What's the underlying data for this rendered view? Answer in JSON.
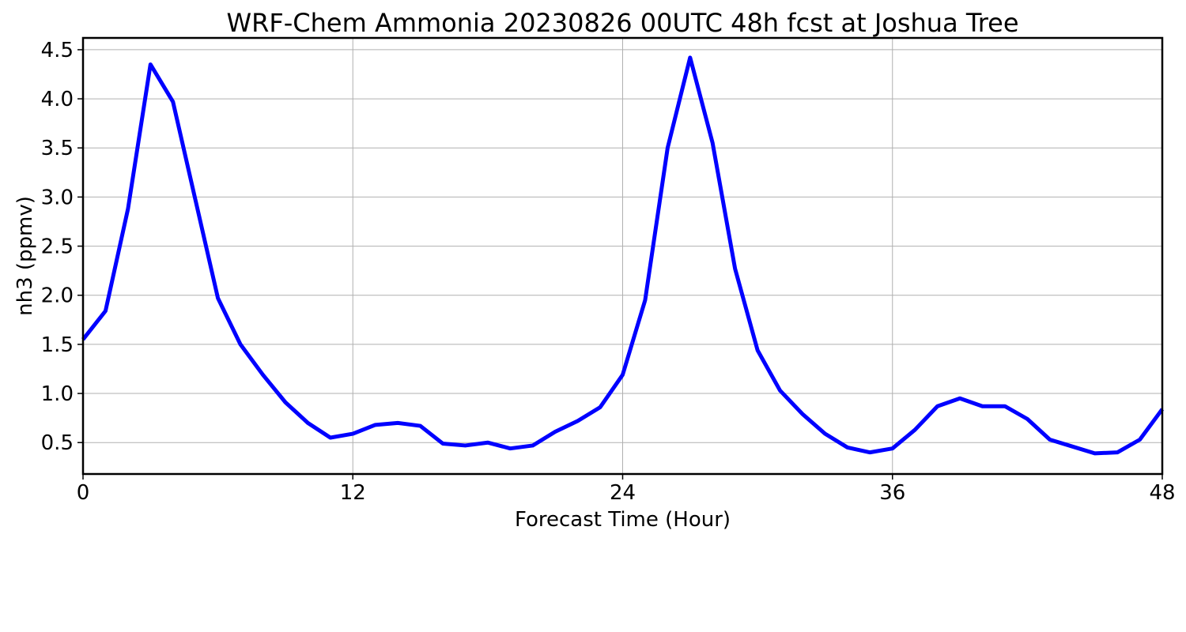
{
  "chart_data": {
    "type": "line",
    "title": "WRF-Chem Ammonia  20230826 00UTC 48h fcst at Joshua Tree",
    "xlabel": "Forecast Time (Hour)",
    "ylabel": "nh3  (ppmv)",
    "xlim": [
      0,
      48
    ],
    "ylim": [
      0.18,
      4.62
    ],
    "x_ticks": [
      0,
      12,
      24,
      36,
      48
    ],
    "y_ticks": [
      0.5,
      1.0,
      1.5,
      2.0,
      2.5,
      3.0,
      3.5,
      4.0,
      4.5
    ],
    "x_tick_labels": [
      "0",
      "12",
      "24",
      "36",
      "48"
    ],
    "y_tick_labels": [
      "0.5",
      "1.0",
      "1.5",
      "2.0",
      "2.5",
      "3.0",
      "3.5",
      "4.0",
      "4.5"
    ],
    "grid": true,
    "legend": "none",
    "series": [
      {
        "color": "#0000ff",
        "x": [
          0,
          1,
          2,
          3,
          4,
          5,
          6,
          7,
          8,
          9,
          10,
          11,
          12,
          13,
          14,
          15,
          16,
          17,
          18,
          19,
          20,
          21,
          22,
          23,
          24,
          25,
          26,
          27,
          28,
          29,
          30,
          31,
          32,
          33,
          34,
          35,
          36,
          37,
          38,
          39,
          40,
          41,
          42,
          43,
          44,
          45,
          46,
          47,
          48
        ],
        "y": [
          1.55,
          1.84,
          2.88,
          4.35,
          3.97,
          2.97,
          1.97,
          1.5,
          1.19,
          0.91,
          0.7,
          0.55,
          0.59,
          0.68,
          0.7,
          0.67,
          0.49,
          0.47,
          0.5,
          0.44,
          0.47,
          0.61,
          0.72,
          0.86,
          1.19,
          1.95,
          3.5,
          4.42,
          3.55,
          2.27,
          1.44,
          1.03,
          0.79,
          0.59,
          0.45,
          0.4,
          0.44,
          0.63,
          0.87,
          0.95,
          0.87,
          0.87,
          0.74,
          0.53,
          0.46,
          0.39,
          0.4,
          0.53,
          0.84
        ]
      }
    ]
  }
}
